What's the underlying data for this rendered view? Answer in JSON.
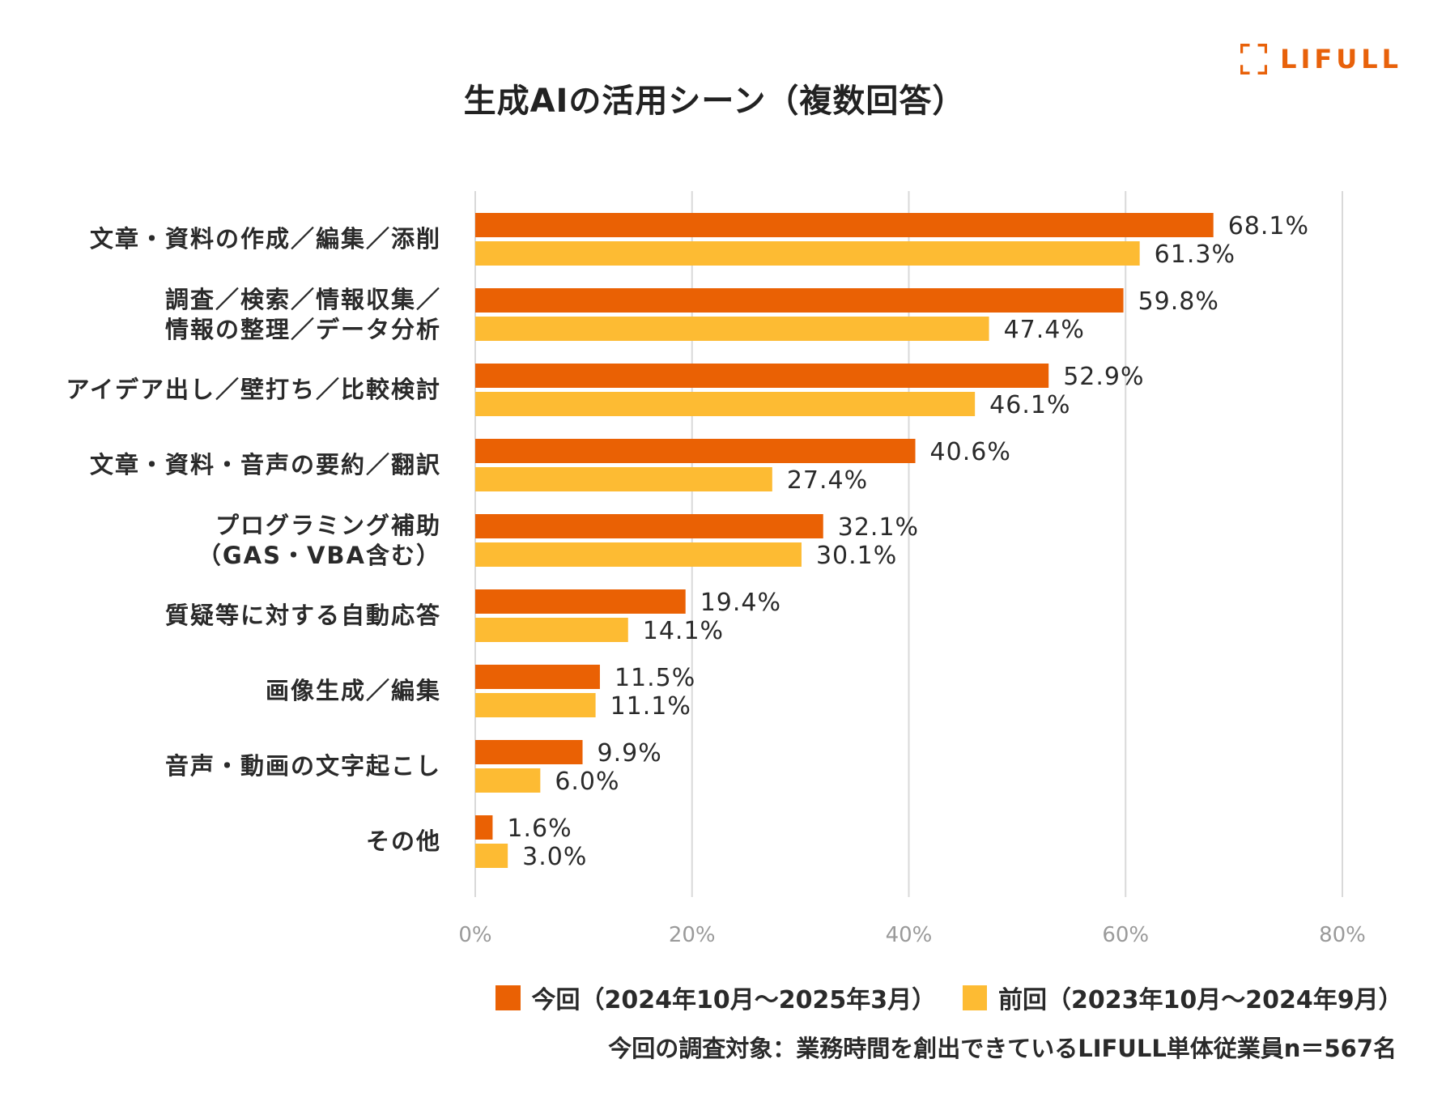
{
  "title": "生成AIの活用シーン（複数回答）",
  "logo": {
    "text": "LIFULL",
    "color": "#e8610a"
  },
  "chart_data": {
    "type": "bar",
    "orientation": "horizontal",
    "categories": [
      [
        "文章・資料の作成／編集／添削"
      ],
      [
        "調査／検索／情報収集／",
        "情報の整理／データ分析"
      ],
      [
        "アイデア出し／壁打ち／比較検討"
      ],
      [
        "文章・資料・音声の要約／翻訳"
      ],
      [
        "プログラミング補助",
        "（GAS・VBA含む）"
      ],
      [
        "質疑等に対する自動応答"
      ],
      [
        "画像生成／編集"
      ],
      [
        "音声・動画の文字起こし"
      ],
      [
        "その他"
      ]
    ],
    "series": [
      {
        "name": "今回（2024年10月～2025年3月）",
        "color": "#ea6104",
        "values": [
          68.1,
          59.8,
          52.9,
          40.6,
          32.1,
          19.4,
          11.5,
          9.9,
          1.6
        ],
        "labels": [
          "68.1%",
          "59.8%",
          "52.9%",
          "40.6%",
          "32.1%",
          "19.4%",
          "11.5%",
          "9.9%",
          "1.6%"
        ]
      },
      {
        "name": "前回（2023年10月～2024年9月）",
        "color": "#fdbb33",
        "values": [
          61.3,
          47.4,
          46.1,
          27.4,
          30.1,
          14.1,
          11.1,
          6.0,
          3.0
        ],
        "labels": [
          "61.3%",
          "47.4%",
          "46.1%",
          "27.4%",
          "30.1%",
          "14.1%",
          "11.1%",
          "6.0%",
          "3.0%"
        ]
      }
    ],
    "xlim": [
      0,
      80
    ],
    "xticks": [
      0,
      20,
      40,
      60,
      80
    ],
    "xtick_labels": [
      "0%",
      "20%",
      "40%",
      "60%",
      "80%"
    ],
    "grid": true,
    "legend_position": "bottom"
  },
  "footnote": "今回の調査対象：業務時間を創出できているLIFULL単体従業員n＝567名"
}
